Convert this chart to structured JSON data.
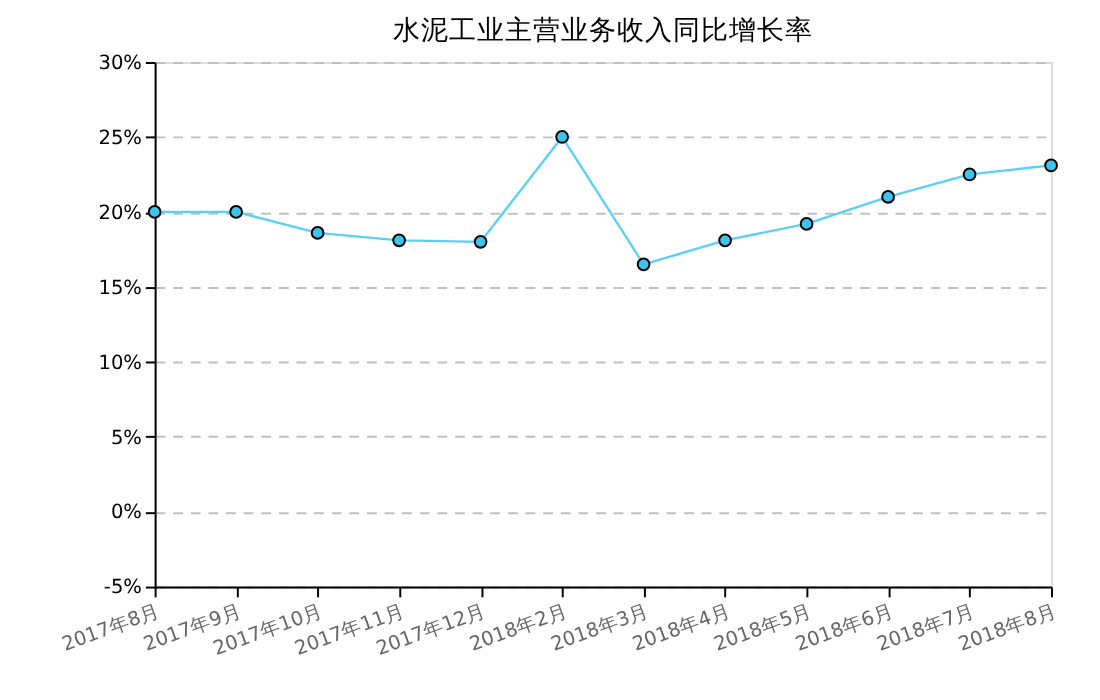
{
  "chart_data": {
    "type": "line",
    "title": "水泥工业主营业务收入同比增长率",
    "categories": [
      "2017年8月",
      "2017年9月",
      "2017年10月",
      "2017年11月",
      "2017年12月",
      "2018年2月",
      "2018年3月",
      "2018年4月",
      "2018年5月",
      "2018年6月",
      "2018年7月",
      "2018年8月"
    ],
    "series": [
      {
        "color": "#5bd0f5",
        "values": [
          20.0,
          20.0,
          18.6,
          18.1,
          18.0,
          25.0,
          16.5,
          18.1,
          19.2,
          21.0,
          22.5,
          23.1
        ]
      }
    ],
    "ylim": [
      -5,
      30
    ],
    "yticks": [
      {
        "value": -5,
        "label": "-5%"
      },
      {
        "value": 0,
        "label": "0%"
      },
      {
        "value": 5,
        "label": "5%"
      },
      {
        "value": 10,
        "label": "10%"
      },
      {
        "value": 15,
        "label": "15%"
      },
      {
        "value": 20,
        "label": "20%"
      },
      {
        "value": 25,
        "label": "25%"
      },
      {
        "value": 30,
        "label": "30%"
      }
    ],
    "grid": "y",
    "marker": "circle",
    "line_style": "solid"
  }
}
